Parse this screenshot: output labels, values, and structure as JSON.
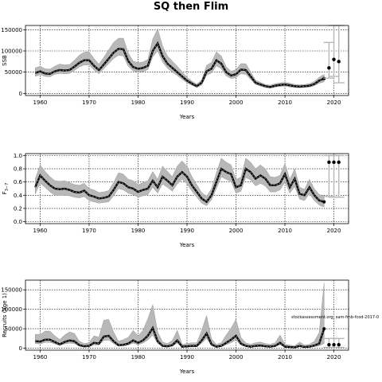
{
  "title": "SQ then Flim",
  "watermark": "stockassessment.org, sam-fmb-fcod-2017-0",
  "chart_data": [
    {
      "type": "line",
      "ylabel": "SSB",
      "xlabel": "Years",
      "xlim": [
        1957,
        2023
      ],
      "ylim": [
        -5000,
        160000
      ],
      "xticks": [
        1960,
        1970,
        1980,
        1990,
        2000,
        2010,
        2020
      ],
      "yticks": [
        0,
        50000,
        100000,
        150000
      ],
      "grid": true,
      "x": [
        1959,
        1960,
        1961,
        1962,
        1963,
        1964,
        1965,
        1966,
        1967,
        1968,
        1969,
        1970,
        1971,
        1972,
        1973,
        1974,
        1975,
        1976,
        1977,
        1978,
        1979,
        1980,
        1981,
        1982,
        1983,
        1984,
        1985,
        1986,
        1987,
        1988,
        1989,
        1990,
        1991,
        1992,
        1993,
        1994,
        1995,
        1996,
        1997,
        1998,
        1999,
        2000,
        2001,
        2002,
        2003,
        2004,
        2005,
        2006,
        2007,
        2008,
        2009,
        2010,
        2011,
        2012,
        2013,
        2014,
        2015,
        2016,
        2017,
        2018
      ],
      "estimate": [
        48000,
        52000,
        47000,
        46000,
        52000,
        55000,
        54000,
        55000,
        63000,
        72000,
        78000,
        78000,
        65000,
        55000,
        68000,
        82000,
        96000,
        105000,
        104000,
        76000,
        62000,
        58000,
        60000,
        65000,
        100000,
        118000,
        88000,
        70000,
        60000,
        50000,
        40000,
        30000,
        23000,
        17000,
        25000,
        52000,
        58000,
        78000,
        70000,
        50000,
        42000,
        45000,
        56000,
        55000,
        40000,
        25000,
        21000,
        17000,
        15000,
        18000,
        20000,
        21000,
        19000,
        17000,
        16000,
        17000,
        18000,
        22000,
        30000,
        35000
      ],
      "lower": [
        40000,
        44000,
        40000,
        39000,
        45000,
        47000,
        46000,
        47000,
        54000,
        62000,
        67000,
        67000,
        55000,
        46000,
        58000,
        70000,
        82000,
        90000,
        88000,
        64000,
        53000,
        50000,
        51000,
        56000,
        86000,
        100000,
        74000,
        59000,
        50000,
        42000,
        33000,
        25000,
        19000,
        14000,
        20000,
        43000,
        48000,
        65000,
        58000,
        41000,
        35000,
        37000,
        46000,
        45000,
        33000,
        21000,
        17000,
        14000,
        12000,
        15000,
        16000,
        17000,
        15000,
        14000,
        13000,
        14000,
        15000,
        18000,
        24000,
        27000
      ],
      "upper": [
        60000,
        64000,
        58000,
        57000,
        64000,
        69000,
        67000,
        68000,
        78000,
        90000,
        97000,
        98000,
        82000,
        69000,
        85000,
        103000,
        120000,
        130000,
        130000,
        95000,
        76000,
        72000,
        74000,
        80000,
        128000,
        152000,
        112000,
        88000,
        76000,
        64000,
        51000,
        38000,
        29000,
        22000,
        32000,
        66000,
        73000,
        98000,
        88000,
        63000,
        52000,
        56000,
        70000,
        70000,
        51000,
        31000,
        26000,
        21000,
        19000,
        23000,
        25000,
        26000,
        24000,
        21000,
        20000,
        21000,
        23000,
        28000,
        38000,
        45000
      ],
      "forecast": [
        {
          "year": 2019,
          "median": 60000,
          "lower": 36000,
          "upper": 120000
        },
        {
          "year": 2020,
          "median": 80000,
          "lower": 40000,
          "upper": 160000
        },
        {
          "year": 2021,
          "median": 75000,
          "lower": 25000,
          "upper": 160000
        }
      ]
    },
    {
      "type": "line",
      "ylabel": "F3-7",
      "ylabel_main": "F",
      "ylabel_sub": "3−7",
      "xlabel": "Years",
      "xlim": [
        1957,
        2023
      ],
      "ylim": [
        -0.03,
        1.03
      ],
      "xticks": [
        1960,
        1970,
        1980,
        1990,
        2000,
        2010,
        2020
      ],
      "yticks": [
        0.0,
        0.2,
        0.4,
        0.6,
        0.8,
        1.0
      ],
      "ytick_labels": [
        "0.0",
        "0.2",
        "0.4",
        "0.6",
        "0.8",
        "1.0"
      ],
      "grid": true,
      "x": [
        1959,
        1960,
        1961,
        1962,
        1963,
        1964,
        1965,
        1966,
        1967,
        1968,
        1969,
        1970,
        1971,
        1972,
        1973,
        1974,
        1975,
        1976,
        1977,
        1978,
        1979,
        1980,
        1981,
        1982,
        1983,
        1984,
        1985,
        1986,
        1987,
        1988,
        1989,
        1990,
        1991,
        1992,
        1993,
        1994,
        1995,
        1996,
        1997,
        1998,
        1999,
        2000,
        2001,
        2002,
        2003,
        2004,
        2005,
        2006,
        2007,
        2008,
        2009,
        2010,
        2011,
        2012,
        2013,
        2014,
        2015,
        2016,
        2017,
        2018
      ],
      "estimate": [
        0.52,
        0.7,
        0.62,
        0.55,
        0.5,
        0.49,
        0.5,
        0.48,
        0.45,
        0.44,
        0.47,
        0.4,
        0.38,
        0.35,
        0.36,
        0.38,
        0.48,
        0.6,
        0.58,
        0.52,
        0.5,
        0.45,
        0.48,
        0.5,
        0.62,
        0.52,
        0.68,
        0.62,
        0.55,
        0.68,
        0.75,
        0.68,
        0.55,
        0.45,
        0.35,
        0.3,
        0.4,
        0.6,
        0.8,
        0.75,
        0.72,
        0.52,
        0.55,
        0.8,
        0.75,
        0.65,
        0.7,
        0.65,
        0.55,
        0.55,
        0.58,
        0.72,
        0.52,
        0.65,
        0.42,
        0.4,
        0.52,
        0.4,
        0.32,
        0.3
      ],
      "lower": [
        0.42,
        0.58,
        0.52,
        0.45,
        0.4,
        0.4,
        0.4,
        0.39,
        0.37,
        0.36,
        0.38,
        0.32,
        0.3,
        0.28,
        0.29,
        0.3,
        0.39,
        0.5,
        0.48,
        0.43,
        0.41,
        0.37,
        0.39,
        0.41,
        0.52,
        0.43,
        0.57,
        0.52,
        0.46,
        0.57,
        0.64,
        0.57,
        0.46,
        0.37,
        0.28,
        0.24,
        0.33,
        0.5,
        0.68,
        0.64,
        0.61,
        0.43,
        0.46,
        0.67,
        0.63,
        0.54,
        0.58,
        0.54,
        0.45,
        0.45,
        0.48,
        0.6,
        0.43,
        0.53,
        0.34,
        0.32,
        0.42,
        0.32,
        0.25,
        0.22
      ],
      "upper": [
        0.65,
        0.86,
        0.76,
        0.68,
        0.62,
        0.61,
        0.62,
        0.59,
        0.56,
        0.55,
        0.58,
        0.5,
        0.48,
        0.44,
        0.45,
        0.47,
        0.59,
        0.74,
        0.72,
        0.64,
        0.62,
        0.56,
        0.59,
        0.62,
        0.76,
        0.64,
        0.84,
        0.76,
        0.68,
        0.84,
        0.92,
        0.84,
        0.68,
        0.56,
        0.44,
        0.38,
        0.5,
        0.74,
        0.96,
        0.9,
        0.86,
        0.64,
        0.67,
        0.96,
        0.9,
        0.8,
        0.86,
        0.8,
        0.68,
        0.67,
        0.7,
        0.88,
        0.64,
        0.8,
        0.52,
        0.49,
        0.64,
        0.5,
        0.41,
        0.39
      ],
      "forecast": [
        {
          "year": 2019,
          "median": 0.9,
          "lower": 0.38,
          "upper": 1.0
        },
        {
          "year": 2020,
          "median": 0.9,
          "lower": 0.37,
          "upper": 1.0
        },
        {
          "year": 2021,
          "median": 0.9,
          "lower": 0.37,
          "upper": 1.0
        }
      ]
    },
    {
      "type": "line",
      "ylabel": "Recruits (age 1)",
      "xlabel": "Years",
      "xlim": [
        1957,
        2023
      ],
      "ylim": [
        -5000,
        175000
      ],
      "xticks": [
        1960,
        1970,
        1980,
        1990,
        2000,
        2010,
        2020
      ],
      "yticks": [
        0,
        50000,
        100000,
        150000
      ],
      "grid": true,
      "x": [
        1959,
        1960,
        1961,
        1962,
        1963,
        1964,
        1965,
        1966,
        1967,
        1968,
        1969,
        1970,
        1971,
        1972,
        1973,
        1974,
        1975,
        1976,
        1977,
        1978,
        1979,
        1980,
        1981,
        1982,
        1983,
        1984,
        1985,
        1986,
        1987,
        1988,
        1989,
        1990,
        1991,
        1992,
        1993,
        1994,
        1995,
        1996,
        1997,
        1998,
        1999,
        2000,
        2001,
        2002,
        2003,
        2004,
        2005,
        2006,
        2007,
        2008,
        2009,
        2010,
        2011,
        2012,
        2013,
        2014,
        2015,
        2016,
        2017,
        2018
      ],
      "estimate": [
        18000,
        17000,
        22000,
        22000,
        16000,
        10000,
        16000,
        20000,
        18000,
        8000,
        5000,
        6000,
        14000,
        12000,
        30000,
        32000,
        18000,
        8000,
        9000,
        12000,
        20000,
        14000,
        20000,
        32000,
        52000,
        18000,
        6000,
        5000,
        8000,
        20000,
        4000,
        5000,
        6000,
        6000,
        20000,
        38000,
        10000,
        4000,
        6000,
        14000,
        22000,
        32000,
        12000,
        6000,
        4000,
        6000,
        7000,
        5000,
        4000,
        6000,
        14000,
        4000,
        3000,
        2000,
        6000,
        3000,
        4000,
        7000,
        12000,
        50000
      ],
      "lower": [
        12000,
        11000,
        15000,
        15000,
        11000,
        7000,
        11000,
        13000,
        12000,
        5000,
        3000,
        4000,
        9000,
        8000,
        20000,
        21000,
        12000,
        5000,
        6000,
        8000,
        13000,
        9000,
        13000,
        21000,
        34000,
        12000,
        4000,
        3000,
        5000,
        13000,
        2500,
        3000,
        4000,
        4000,
        13000,
        25000,
        6000,
        2500,
        4000,
        9000,
        14000,
        21000,
        8000,
        4000,
        2500,
        4000,
        4500,
        3000,
        2500,
        4000,
        9000,
        2500,
        2000,
        1200,
        3500,
        1800,
        2500,
        4000,
        6000,
        12000
      ],
      "upper": [
        36000,
        35000,
        44000,
        44000,
        32000,
        22000,
        34000,
        42000,
        38000,
        18000,
        12000,
        14000,
        32000,
        28000,
        72000,
        74000,
        42000,
        18000,
        22000,
        28000,
        46000,
        32000,
        46000,
        76000,
        112000,
        42000,
        16000,
        12000,
        20000,
        46000,
        10000,
        12000,
        14000,
        14000,
        46000,
        84000,
        24000,
        10000,
        14000,
        34000,
        52000,
        74000,
        28000,
        14000,
        10000,
        14000,
        16000,
        12000,
        10000,
        14000,
        34000,
        10000,
        8000,
        6000,
        16000,
        8000,
        10000,
        18000,
        40000,
        168000
      ],
      "forecast": [
        {
          "year": 2019,
          "median": 9000,
          "lower": 2000,
          "upper": 25000
        },
        {
          "year": 2020,
          "median": 9000,
          "lower": 2000,
          "upper": 25000
        },
        {
          "year": 2021,
          "median": 9000,
          "lower": 2000,
          "upper": 25000
        }
      ]
    }
  ],
  "colors": {
    "band": "#b8b8b8",
    "line": "#000000",
    "estimate_dash": "#555555",
    "forecast_bar": "#b8b8b8",
    "grid": "#000000"
  }
}
